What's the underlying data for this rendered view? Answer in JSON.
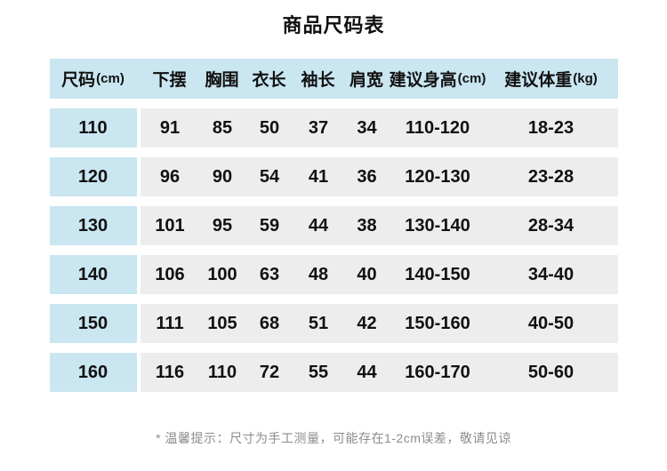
{
  "page": {
    "title": "商品尺码表",
    "footnote": "* 温馨提示：尺寸为手工测量，可能存在1-2cm误差，敬请见谅"
  },
  "colors": {
    "header_bg": "#c9e6f1",
    "size_cell_bg": "#c9e6f1",
    "row_bg": "#ededed",
    "text": "#111111",
    "footnote_text": "#8c8c8c"
  },
  "table": {
    "columns": [
      {
        "label": "尺码",
        "unit": "(cm)"
      },
      {
        "label": "下摆",
        "unit": ""
      },
      {
        "label": "胸围",
        "unit": ""
      },
      {
        "label": "衣长",
        "unit": ""
      },
      {
        "label": "袖长",
        "unit": ""
      },
      {
        "label": "肩宽",
        "unit": ""
      },
      {
        "label": "建议身高",
        "unit": "(cm)"
      },
      {
        "label": "建议体重",
        "unit": "(kg)"
      }
    ],
    "rows": [
      {
        "size": "110",
        "hem": "91",
        "chest": "85",
        "length": "50",
        "sleeve": "37",
        "shoulder": "34",
        "height": "110-120",
        "weight": "18-23"
      },
      {
        "size": "120",
        "hem": "96",
        "chest": "90",
        "length": "54",
        "sleeve": "41",
        "shoulder": "36",
        "height": "120-130",
        "weight": "23-28"
      },
      {
        "size": "130",
        "hem": "101",
        "chest": "95",
        "length": "59",
        "sleeve": "44",
        "shoulder": "38",
        "height": "130-140",
        "weight": "28-34"
      },
      {
        "size": "140",
        "hem": "106",
        "chest": "100",
        "length": "63",
        "sleeve": "48",
        "shoulder": "40",
        "height": "140-150",
        "weight": "34-40"
      },
      {
        "size": "150",
        "hem": "111",
        "chest": "105",
        "length": "68",
        "sleeve": "51",
        "shoulder": "42",
        "height": "150-160",
        "weight": "40-50"
      },
      {
        "size": "160",
        "hem": "116",
        "chest": "110",
        "length": "72",
        "sleeve": "55",
        "shoulder": "44",
        "height": "160-170",
        "weight": "50-60"
      }
    ]
  },
  "chart_data": {
    "type": "table",
    "title": "商品尺码表",
    "columns": [
      "尺码(cm)",
      "下摆",
      "胸围",
      "衣长",
      "袖长",
      "肩宽",
      "建议身高(cm)",
      "建议体重(kg)"
    ],
    "rows": [
      [
        "110",
        "91",
        "85",
        "50",
        "37",
        "34",
        "110-120",
        "18-23"
      ],
      [
        "120",
        "96",
        "90",
        "54",
        "41",
        "36",
        "120-130",
        "23-28"
      ],
      [
        "130",
        "101",
        "95",
        "59",
        "44",
        "38",
        "130-140",
        "28-34"
      ],
      [
        "140",
        "106",
        "100",
        "63",
        "48",
        "40",
        "140-150",
        "34-40"
      ],
      [
        "150",
        "111",
        "105",
        "68",
        "51",
        "42",
        "150-160",
        "40-50"
      ],
      [
        "160",
        "116",
        "110",
        "72",
        "55",
        "44",
        "160-170",
        "50-60"
      ]
    ],
    "annotations": [
      "* 温馨提示：尺寸为手工测量，可能存在1-2cm误差，敬请见谅"
    ]
  }
}
